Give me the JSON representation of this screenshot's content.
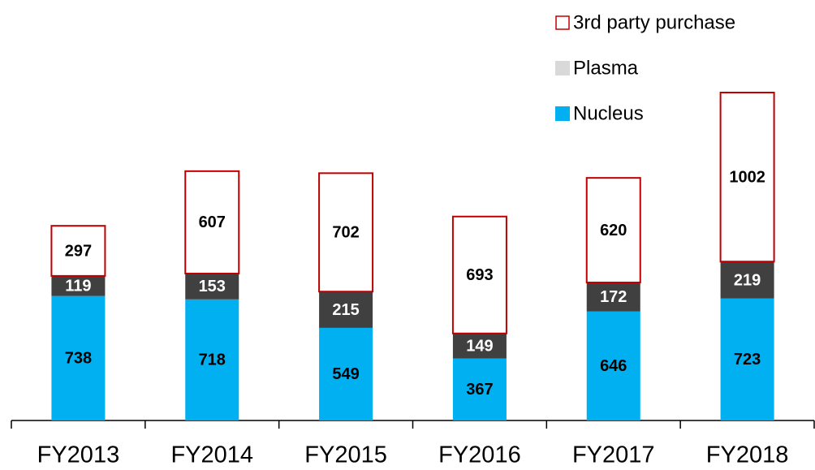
{
  "chart_data": {
    "type": "stacked_bar",
    "categories": [
      "FY2013",
      "FY2014",
      "FY2015",
      "FY2016",
      "FY2017",
      "FY2018"
    ],
    "series": [
      {
        "name": "Nucleus",
        "color": "#00b0f0",
        "values": [
          738,
          718,
          549,
          367,
          646,
          723
        ]
      },
      {
        "name": "Plasma",
        "color": "#404040",
        "legend_color": "#d9d9d9",
        "values": [
          119,
          153,
          215,
          149,
          172,
          219
        ]
      },
      {
        "name": "3rd party purchase",
        "color": "#ffffff",
        "stroke": "#c00000",
        "values": [
          297,
          607,
          702,
          693,
          620,
          1002
        ]
      }
    ]
  }
}
